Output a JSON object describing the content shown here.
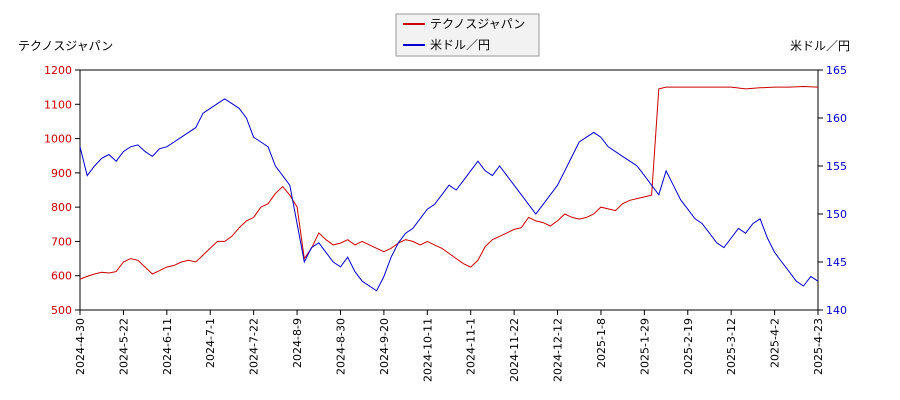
{
  "chart_data": {
    "type": "line",
    "left_axis_label": "テクノスジャパン",
    "right_axis_label": "米ドル／円",
    "left_ylim": [
      500,
      1200
    ],
    "left_yticks": [
      500,
      600,
      700,
      800,
      900,
      1000,
      1100,
      1200
    ],
    "right_ylim": [
      140,
      165
    ],
    "right_yticks": [
      140,
      145,
      150,
      155,
      160,
      165
    ],
    "x_tick_labels": [
      "2024-4-30",
      "2024-5-22",
      "2024-6-11",
      "2024-7-1",
      "2024-7-22",
      "2024-8-9",
      "2024-8-30",
      "2024-9-20",
      "2024-10-11",
      "2024-11-1",
      "2024-11-22",
      "2024-12-12",
      "2025-1-8",
      "2025-1-29",
      "2025-2-19",
      "2025-3-12",
      "2025-4-2",
      "2025-4-23"
    ],
    "grid": false,
    "legend_position": "top-center",
    "series": [
      {
        "name": "テクノスジャパン",
        "axis": "left",
        "color": "#cc0000",
        "points": [
          [
            0,
            590
          ],
          [
            0.5,
            598
          ],
          [
            1,
            605
          ],
          [
            1.5,
            610
          ],
          [
            2,
            608
          ],
          [
            2.5,
            612
          ],
          [
            3,
            640
          ],
          [
            3.5,
            650
          ],
          [
            4,
            645
          ],
          [
            4.5,
            625
          ],
          [
            5,
            605
          ],
          [
            5.5,
            615
          ],
          [
            6,
            625
          ],
          [
            6.5,
            630
          ],
          [
            7,
            640
          ],
          [
            7.5,
            645
          ],
          [
            8,
            640
          ],
          [
            8.5,
            660
          ],
          [
            9,
            680
          ],
          [
            9.5,
            700
          ],
          [
            10,
            700
          ],
          [
            10.5,
            715
          ],
          [
            11,
            740
          ],
          [
            11.5,
            760
          ],
          [
            12,
            770
          ],
          [
            12.5,
            800
          ],
          [
            13,
            810
          ],
          [
            13.5,
            840
          ],
          [
            14,
            860
          ],
          [
            14.5,
            835
          ],
          [
            15,
            800
          ],
          [
            15.5,
            650
          ],
          [
            16,
            680
          ],
          [
            16.5,
            725
          ],
          [
            17,
            705
          ],
          [
            17.5,
            690
          ],
          [
            18,
            695
          ],
          [
            18.5,
            705
          ],
          [
            19,
            690
          ],
          [
            19.5,
            700
          ],
          [
            20,
            690
          ],
          [
            20.5,
            680
          ],
          [
            21,
            670
          ],
          [
            21.5,
            680
          ],
          [
            22,
            695
          ],
          [
            22.5,
            705
          ],
          [
            23,
            700
          ],
          [
            23.5,
            690
          ],
          [
            24,
            700
          ],
          [
            24.5,
            690
          ],
          [
            25,
            680
          ],
          [
            25.5,
            665
          ],
          [
            26,
            650
          ],
          [
            26.5,
            635
          ],
          [
            27,
            625
          ],
          [
            27.5,
            645
          ],
          [
            28,
            685
          ],
          [
            28.5,
            705
          ],
          [
            29,
            715
          ],
          [
            29.5,
            725
          ],
          [
            30,
            735
          ],
          [
            30.5,
            740
          ],
          [
            31,
            770
          ],
          [
            31.5,
            760
          ],
          [
            32,
            755
          ],
          [
            32.5,
            745
          ],
          [
            33,
            760
          ],
          [
            33.5,
            780
          ],
          [
            34,
            770
          ],
          [
            34.5,
            765
          ],
          [
            35,
            770
          ],
          [
            35.5,
            780
          ],
          [
            36,
            800
          ],
          [
            36.5,
            795
          ],
          [
            37,
            790
          ],
          [
            37.5,
            810
          ],
          [
            38,
            820
          ],
          [
            38.5,
            825
          ],
          [
            39,
            830
          ],
          [
            39.5,
            835
          ],
          [
            40,
            1145
          ],
          [
            40.5,
            1150
          ],
          [
            41,
            1150
          ],
          [
            42,
            1150
          ],
          [
            43,
            1150
          ],
          [
            44,
            1150
          ],
          [
            45,
            1150
          ],
          [
            46,
            1145
          ],
          [
            47,
            1148
          ],
          [
            48,
            1150
          ],
          [
            49,
            1150
          ],
          [
            50,
            1152
          ],
          [
            51,
            1150
          ]
        ]
      },
      {
        "name": "米ドル／円",
        "axis": "right",
        "color": "#0000cc",
        "points": [
          [
            0,
            157.0
          ],
          [
            0.5,
            154.0
          ],
          [
            1,
            155.0
          ],
          [
            1.5,
            155.8
          ],
          [
            2,
            156.2
          ],
          [
            2.5,
            155.5
          ],
          [
            3,
            156.5
          ],
          [
            3.5,
            157.0
          ],
          [
            4,
            157.2
          ],
          [
            4.5,
            156.5
          ],
          [
            5,
            156.0
          ],
          [
            5.5,
            156.8
          ],
          [
            6,
            157.0
          ],
          [
            6.5,
            157.5
          ],
          [
            7,
            158.0
          ],
          [
            7.5,
            158.5
          ],
          [
            8,
            159.0
          ],
          [
            8.5,
            160.5
          ],
          [
            9,
            161.0
          ],
          [
            9.5,
            161.5
          ],
          [
            10,
            162.0
          ],
          [
            10.5,
            161.5
          ],
          [
            11,
            161.0
          ],
          [
            11.5,
            160.0
          ],
          [
            12,
            158.0
          ],
          [
            12.5,
            157.5
          ],
          [
            13,
            157.0
          ],
          [
            13.5,
            155.0
          ],
          [
            14,
            154.0
          ],
          [
            14.5,
            153.0
          ],
          [
            15,
            149.0
          ],
          [
            15.5,
            145.0
          ],
          [
            16,
            146.5
          ],
          [
            16.5,
            147.0
          ],
          [
            17,
            146.0
          ],
          [
            17.5,
            145.0
          ],
          [
            18,
            144.5
          ],
          [
            18.5,
            145.5
          ],
          [
            19,
            144.0
          ],
          [
            19.5,
            143.0
          ],
          [
            20,
            142.5
          ],
          [
            20.5,
            142.0
          ],
          [
            21,
            143.5
          ],
          [
            21.5,
            145.5
          ],
          [
            22,
            147.0
          ],
          [
            22.5,
            148.0
          ],
          [
            23,
            148.5
          ],
          [
            23.5,
            149.5
          ],
          [
            24,
            150.5
          ],
          [
            24.5,
            151.0
          ],
          [
            25,
            152.0
          ],
          [
            25.5,
            153.0
          ],
          [
            26,
            152.5
          ],
          [
            26.5,
            153.5
          ],
          [
            27,
            154.5
          ],
          [
            27.5,
            155.5
          ],
          [
            28,
            154.5
          ],
          [
            28.5,
            154.0
          ],
          [
            29,
            155.0
          ],
          [
            29.5,
            154.0
          ],
          [
            30,
            153.0
          ],
          [
            30.5,
            152.0
          ],
          [
            31,
            151.0
          ],
          [
            31.5,
            150.0
          ],
          [
            32,
            151.0
          ],
          [
            32.5,
            152.0
          ],
          [
            33,
            153.0
          ],
          [
            33.5,
            154.5
          ],
          [
            34,
            156.0
          ],
          [
            34.5,
            157.5
          ],
          [
            35,
            158.0
          ],
          [
            35.5,
            158.5
          ],
          [
            36,
            158.0
          ],
          [
            36.5,
            157.0
          ],
          [
            37,
            156.5
          ],
          [
            37.5,
            156.0
          ],
          [
            38,
            155.5
          ],
          [
            38.5,
            155.0
          ],
          [
            39,
            154.0
          ],
          [
            39.5,
            153.0
          ],
          [
            40,
            152.0
          ],
          [
            40.5,
            154.5
          ],
          [
            41,
            153.0
          ],
          [
            41.5,
            151.5
          ],
          [
            42,
            150.5
          ],
          [
            42.5,
            149.5
          ],
          [
            43,
            149.0
          ],
          [
            43.5,
            148.0
          ],
          [
            44,
            147.0
          ],
          [
            44.5,
            146.5
          ],
          [
            45,
            147.5
          ],
          [
            45.5,
            148.5
          ],
          [
            46,
            148.0
          ],
          [
            46.5,
            149.0
          ],
          [
            47,
            149.5
          ],
          [
            47.5,
            147.5
          ],
          [
            48,
            146.0
          ],
          [
            48.5,
            145.0
          ],
          [
            49,
            144.0
          ],
          [
            49.5,
            143.0
          ],
          [
            50,
            142.5
          ],
          [
            50.5,
            143.5
          ],
          [
            51,
            143.0
          ]
        ]
      }
    ]
  }
}
